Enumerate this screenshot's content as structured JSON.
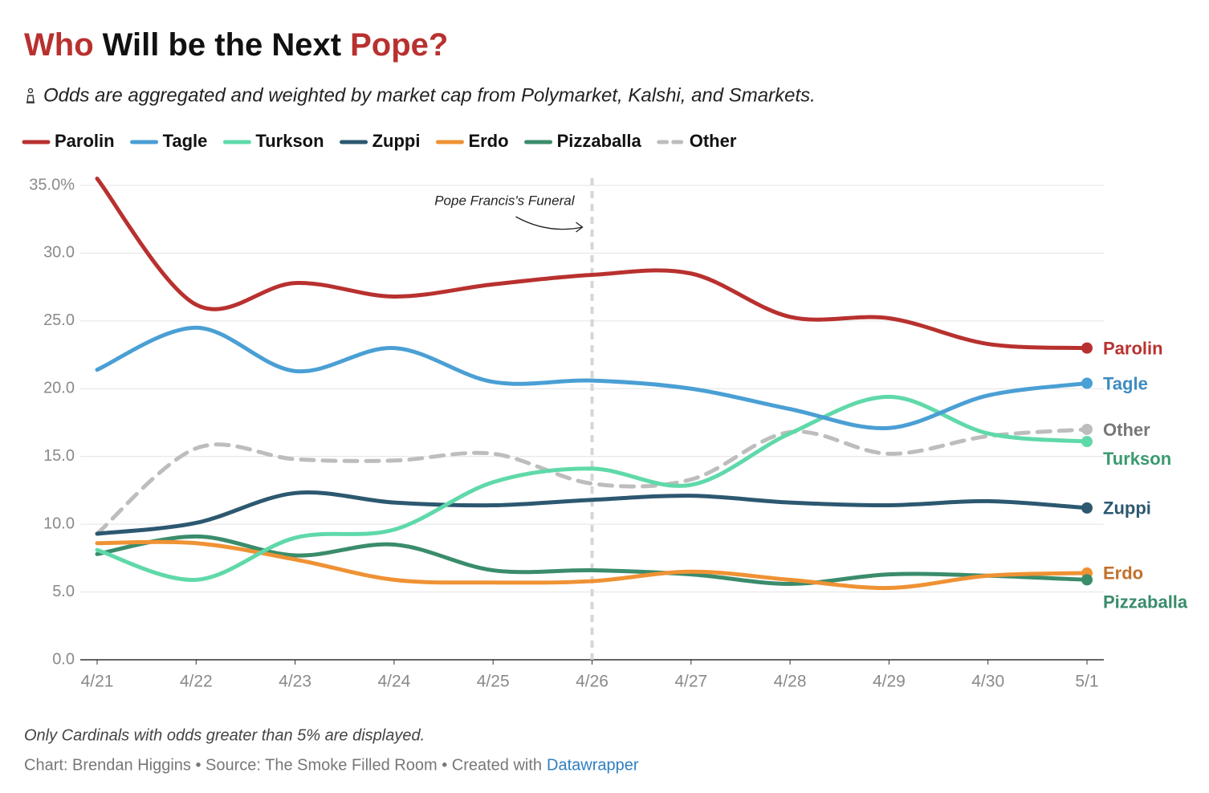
{
  "chart_data": {
    "type": "line",
    "title": [
      "Who",
      "Will be the Next",
      "Pope?"
    ],
    "title_colors": [
      "#b8312f",
      "#111111",
      "#b8312f"
    ],
    "subtitle": "Odds are aggregated and weighted by market cap from Polymarket, Kalshi, and Smarkets.",
    "categories": [
      "4/21",
      "4/22",
      "4/23",
      "4/24",
      "4/25",
      "4/26",
      "4/27",
      "4/28",
      "4/29",
      "4/30",
      "5/1"
    ],
    "series": [
      {
        "name": "Parolin",
        "color": "#b8312f",
        "label_color": "#b8312f",
        "values": [
          35.5,
          26.2,
          27.8,
          26.8,
          27.7,
          28.4,
          28.5,
          25.3,
          25.2,
          23.3,
          23.0
        ]
      },
      {
        "name": "Tagle",
        "color": "#4a9fd4",
        "label_color": "#3d8cc0",
        "values": [
          21.4,
          24.5,
          21.3,
          23.0,
          20.5,
          20.6,
          20.0,
          18.5,
          17.1,
          19.5,
          20.4
        ]
      },
      {
        "name": "Turkson",
        "color": "#5fd9a9",
        "label_color": "#3a9a6e",
        "values": [
          8.1,
          5.9,
          9.0,
          9.6,
          13.1,
          14.1,
          12.9,
          16.7,
          19.4,
          16.7,
          16.1
        ]
      },
      {
        "name": "Zuppi",
        "color": "#2c5870",
        "label_color": "#2c5870",
        "values": [
          9.3,
          10.1,
          12.3,
          11.6,
          11.4,
          11.8,
          12.1,
          11.6,
          11.4,
          11.7,
          11.2
        ]
      },
      {
        "name": "Erdo",
        "color": "#ef9234",
        "label_color": "#c2702a",
        "values": [
          8.6,
          8.6,
          7.4,
          5.9,
          5.7,
          5.8,
          6.5,
          5.9,
          5.3,
          6.2,
          6.4
        ]
      },
      {
        "name": "Pizzaballa",
        "color": "#3a8c6b",
        "label_color": "#3a8c6b",
        "values": [
          7.8,
          9.1,
          7.7,
          8.5,
          6.6,
          6.6,
          6.3,
          5.6,
          6.3,
          6.2,
          5.9
        ]
      },
      {
        "name": "Other",
        "color": "#bdbdbd",
        "label_color": "#777777",
        "dashed": true,
        "values": [
          9.3,
          15.6,
          14.8,
          14.7,
          15.2,
          13.0,
          13.3,
          16.8,
          15.2,
          16.5,
          17.0
        ]
      }
    ],
    "ylim": [
      0,
      35
    ],
    "yticks": [
      {
        "value": 0,
        "label": "0.0"
      },
      {
        "value": 5,
        "label": "5.0"
      },
      {
        "value": 10,
        "label": "10.0"
      },
      {
        "value": 15,
        "label": "15.0"
      },
      {
        "value": 20,
        "label": "20.0"
      },
      {
        "value": 25,
        "label": "25.0"
      },
      {
        "value": 30,
        "label": "30.0"
      },
      {
        "value": 35,
        "label": "35.0%"
      }
    ],
    "grid": true,
    "annotation": {
      "text": "Pope Francis's Funeral",
      "category": "4/26"
    },
    "note": "Only Cardinals with odds greater than 5% are displayed.",
    "credit": "Chart: Brendan Higgins • Source: The Smoke Filled Room • Created with",
    "credit_link": "Datawrapper"
  }
}
